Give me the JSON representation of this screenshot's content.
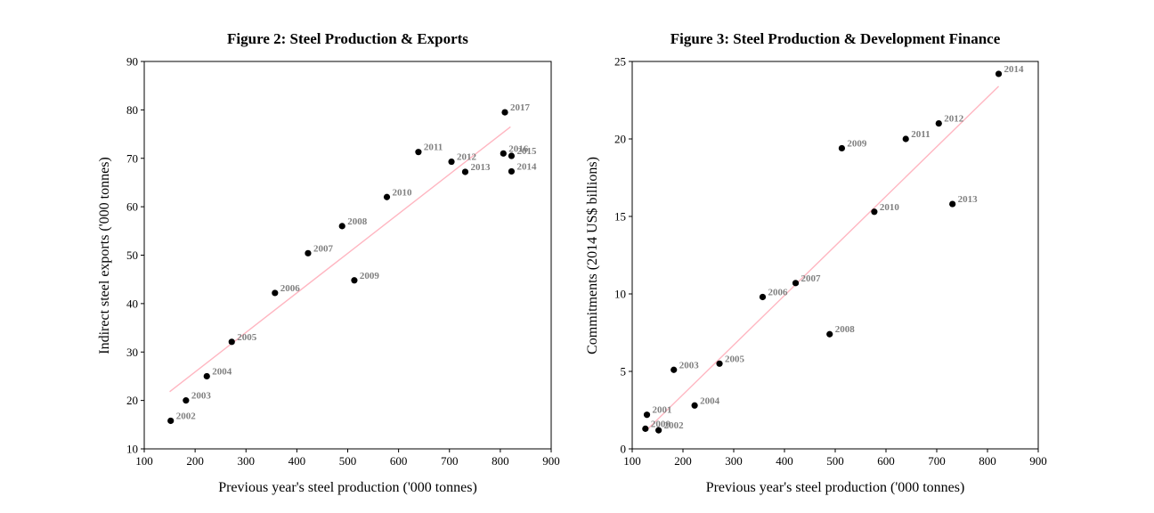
{
  "chart_data": [
    {
      "type": "scatter",
      "title": "Figure 2: Steel Production & Exports",
      "xlabel": "Previous year's steel production ('000 tonnes)",
      "ylabel": "Indirect steel exports ('000 tonnes)",
      "xlim": [
        100,
        900
      ],
      "ylim": [
        10,
        90
      ],
      "xticks": [
        100,
        200,
        300,
        400,
        500,
        600,
        700,
        800,
        900
      ],
      "yticks": [
        10,
        20,
        30,
        40,
        50,
        60,
        70,
        80,
        90
      ],
      "grid": false,
      "trendline": {
        "x": [
          150,
          820
        ],
        "y": [
          21.8,
          76.5
        ],
        "color": "#ffb6c1"
      },
      "points": [
        {
          "label": "2002",
          "x": 152,
          "y": 15.8
        },
        {
          "label": "2003",
          "x": 182,
          "y": 20.0
        },
        {
          "label": "2004",
          "x": 223,
          "y": 25.0
        },
        {
          "label": "2005",
          "x": 272,
          "y": 32.1
        },
        {
          "label": "2006",
          "x": 357,
          "y": 42.2
        },
        {
          "label": "2007",
          "x": 422,
          "y": 50.4
        },
        {
          "label": "2008",
          "x": 489,
          "y": 56.0
        },
        {
          "label": "2009",
          "x": 513,
          "y": 44.8
        },
        {
          "label": "2010",
          "x": 577,
          "y": 62.0
        },
        {
          "label": "2011",
          "x": 639,
          "y": 71.3
        },
        {
          "label": "2012",
          "x": 704,
          "y": 69.3
        },
        {
          "label": "2013",
          "x": 731,
          "y": 67.2
        },
        {
          "label": "2014",
          "x": 822,
          "y": 67.3
        },
        {
          "label": "2015",
          "x": 822,
          "y": 70.5
        },
        {
          "label": "2016",
          "x": 806,
          "y": 71.0
        },
        {
          "label": "2017",
          "x": 809,
          "y": 79.5
        }
      ]
    },
    {
      "type": "scatter",
      "title": "Figure 3: Steel Production & Development Finance",
      "xlabel": "Previous year's steel production ('000 tonnes)",
      "ylabel": "Commitments (2014 US$ billions)",
      "xlim": [
        100,
        900
      ],
      "ylim": [
        0,
        25
      ],
      "xticks": [
        100,
        200,
        300,
        400,
        500,
        600,
        700,
        800,
        900
      ],
      "yticks": [
        0,
        5,
        10,
        15,
        20,
        25
      ],
      "grid": false,
      "trendline": {
        "x": [
          128,
          822
        ],
        "y": [
          1.2,
          23.4
        ],
        "color": "#ffb6c1"
      },
      "points": [
        {
          "label": "2000",
          "x": 126,
          "y": 1.3
        },
        {
          "label": "2001",
          "x": 129,
          "y": 2.2
        },
        {
          "label": "2002",
          "x": 152,
          "y": 1.2
        },
        {
          "label": "2003",
          "x": 182,
          "y": 5.1
        },
        {
          "label": "2004",
          "x": 223,
          "y": 2.8
        },
        {
          "label": "2005",
          "x": 272,
          "y": 5.5
        },
        {
          "label": "2006",
          "x": 357,
          "y": 9.8
        },
        {
          "label": "2007",
          "x": 422,
          "y": 10.7
        },
        {
          "label": "2008",
          "x": 489,
          "y": 7.4
        },
        {
          "label": "2009",
          "x": 513,
          "y": 19.4
        },
        {
          "label": "2010",
          "x": 577,
          "y": 15.3
        },
        {
          "label": "2011",
          "x": 639,
          "y": 20.0
        },
        {
          "label": "2012",
          "x": 704,
          "y": 21.0
        },
        {
          "label": "2013",
          "x": 731,
          "y": 15.8
        },
        {
          "label": "2014",
          "x": 822,
          "y": 24.2
        }
      ]
    }
  ]
}
